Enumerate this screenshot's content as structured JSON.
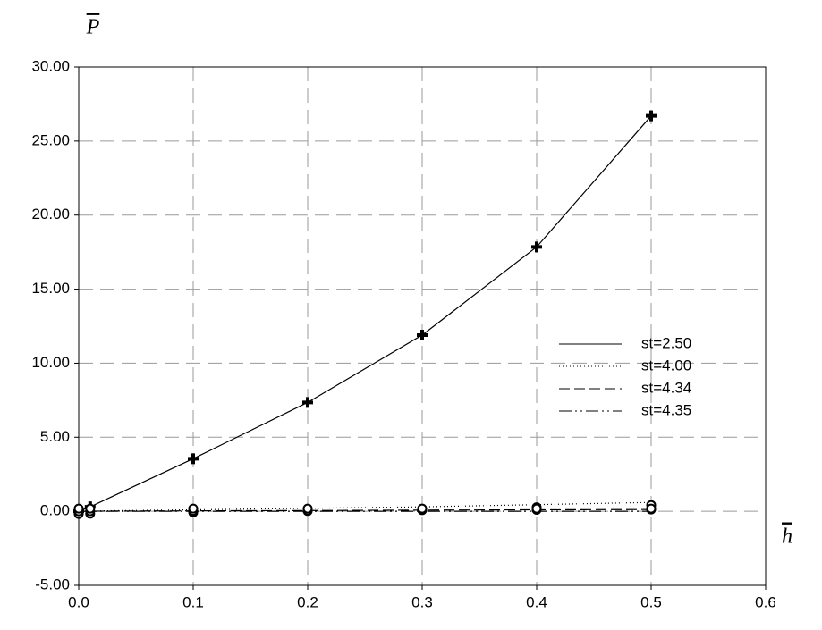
{
  "chart_data": {
    "type": "line",
    "y_label": "P",
    "x_label": "h",
    "xlim": [
      0,
      0.6
    ],
    "xticks": [
      {
        "value": 0,
        "label": "0.0"
      },
      {
        "value": 0.1,
        "label": "0.1"
      },
      {
        "value": 0.2,
        "label": "0.2"
      },
      {
        "value": 0.3,
        "label": "0.3"
      },
      {
        "value": 0.4,
        "label": "0.4"
      },
      {
        "value": 0.5,
        "label": "0.5"
      },
      {
        "value": 0.6,
        "label": "0.6"
      }
    ],
    "ylim": [
      -5,
      30
    ],
    "yticks": [
      {
        "value": -5,
        "label": "-5.00"
      },
      {
        "value": 0,
        "label": "0.00"
      },
      {
        "value": 5,
        "label": "5.00"
      },
      {
        "value": 10,
        "label": "10.00"
      },
      {
        "value": 15,
        "label": "15.00"
      },
      {
        "value": 20,
        "label": "20.00"
      },
      {
        "value": 25,
        "label": "25.00"
      },
      {
        "value": 30,
        "label": "30.00"
      }
    ],
    "grid": true,
    "x": [
      0,
      0.01,
      0.1,
      0.2,
      0.3,
      0.4,
      0.5
    ],
    "series": [
      {
        "name": "st=2.50",
        "color": "#000000",
        "linestyle": "solid",
        "values": [
          0,
          0.3,
          3.55,
          7.35,
          11.9,
          17.85,
          26.7
        ]
      },
      {
        "name": "st=4.00",
        "color": "#000000",
        "linestyle": "dotted",
        "values": [
          0,
          0.02,
          0.1,
          0.2,
          0.3,
          0.45,
          0.6
        ]
      },
      {
        "name": "st=4.34",
        "color": "#000000",
        "linestyle": "dashed",
        "values": [
          0,
          0.01,
          0.03,
          0.05,
          0.08,
          0.1,
          0.12
        ]
      },
      {
        "name": "st=4.35",
        "color": "#000000",
        "linestyle": "dashdot",
        "values": [
          0,
          0,
          0,
          0,
          0,
          0,
          0
        ]
      }
    ]
  }
}
